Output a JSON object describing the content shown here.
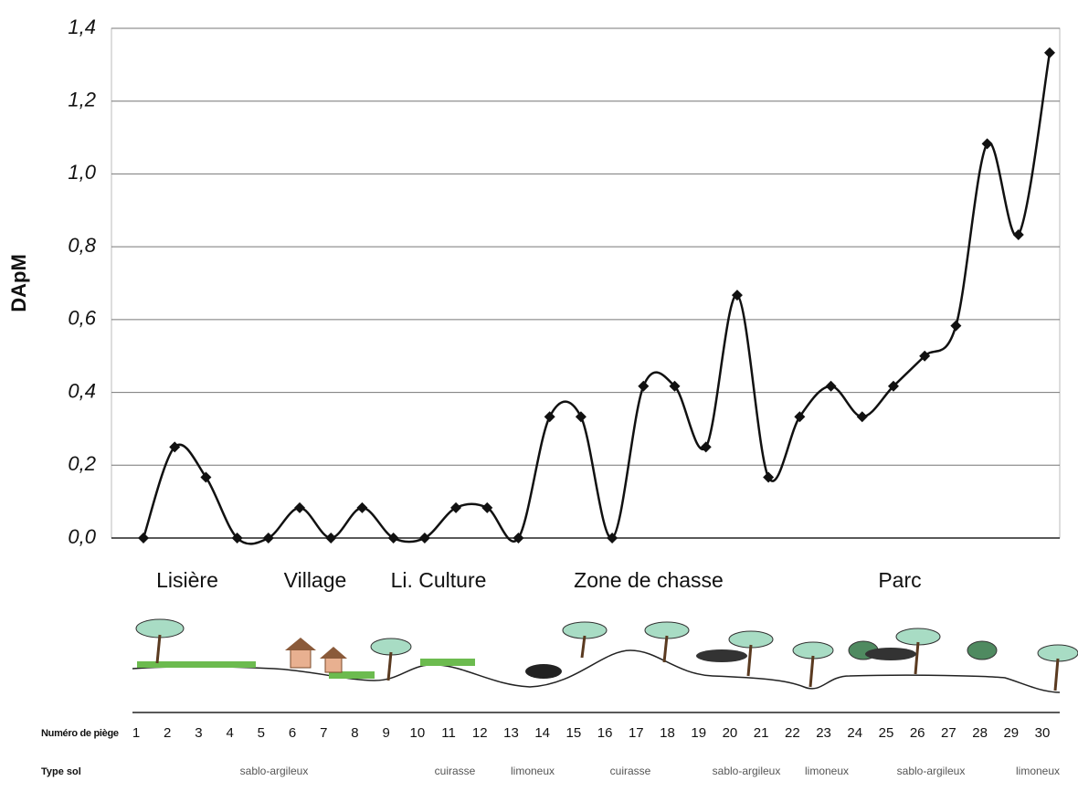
{
  "chart_data": {
    "type": "line",
    "y_label": "DApM",
    "categories": [
      "1",
      "2",
      "3",
      "4",
      "5",
      "6",
      "7",
      "8",
      "9",
      "10",
      "11",
      "12",
      "13",
      "14",
      "15",
      "16",
      "17",
      "18",
      "19",
      "20",
      "21",
      "22",
      "23",
      "24",
      "25",
      "26",
      "27",
      "28",
      "29",
      "30"
    ],
    "values": [
      0,
      0.25,
      0.167,
      0,
      0,
      0.083,
      0,
      0.083,
      0,
      0,
      0.083,
      0.083,
      0,
      0.333,
      0.333,
      0,
      0.417,
      0.417,
      0.25,
      0.667,
      0.167,
      0.333,
      0.417,
      0.333,
      0.417,
      0.5,
      0.583,
      1.083,
      0.833,
      1.333
    ],
    "color": "#111111",
    "ylim": [
      0,
      1.4
    ],
    "yticks": [
      {
        "value": 0,
        "label": "0,0"
      },
      {
        "value": 0.2,
        "label": "0,2"
      },
      {
        "value": 0.4,
        "label": "0,4"
      },
      {
        "value": 0.6,
        "label": "0,6"
      },
      {
        "value": 0.8,
        "label": "0,8"
      },
      {
        "value": 1.0,
        "label": "1,0"
      },
      {
        "value": 1.2,
        "label": "1,2"
      },
      {
        "value": 1.4,
        "label": "1,4"
      }
    ],
    "grid": true,
    "zones": [
      "Lisière",
      "Village",
      "Li. Culture",
      "Zone de chasse",
      "Parc"
    ],
    "x_label": "Numéro de piège",
    "soil_label": "Type sol",
    "soils": [
      "sablo-argileux",
      "cuirasse",
      "limoneux",
      "cuirasse",
      "sablo-argileux",
      "limoneux",
      "sablo-argileux",
      "limoneux"
    ]
  }
}
